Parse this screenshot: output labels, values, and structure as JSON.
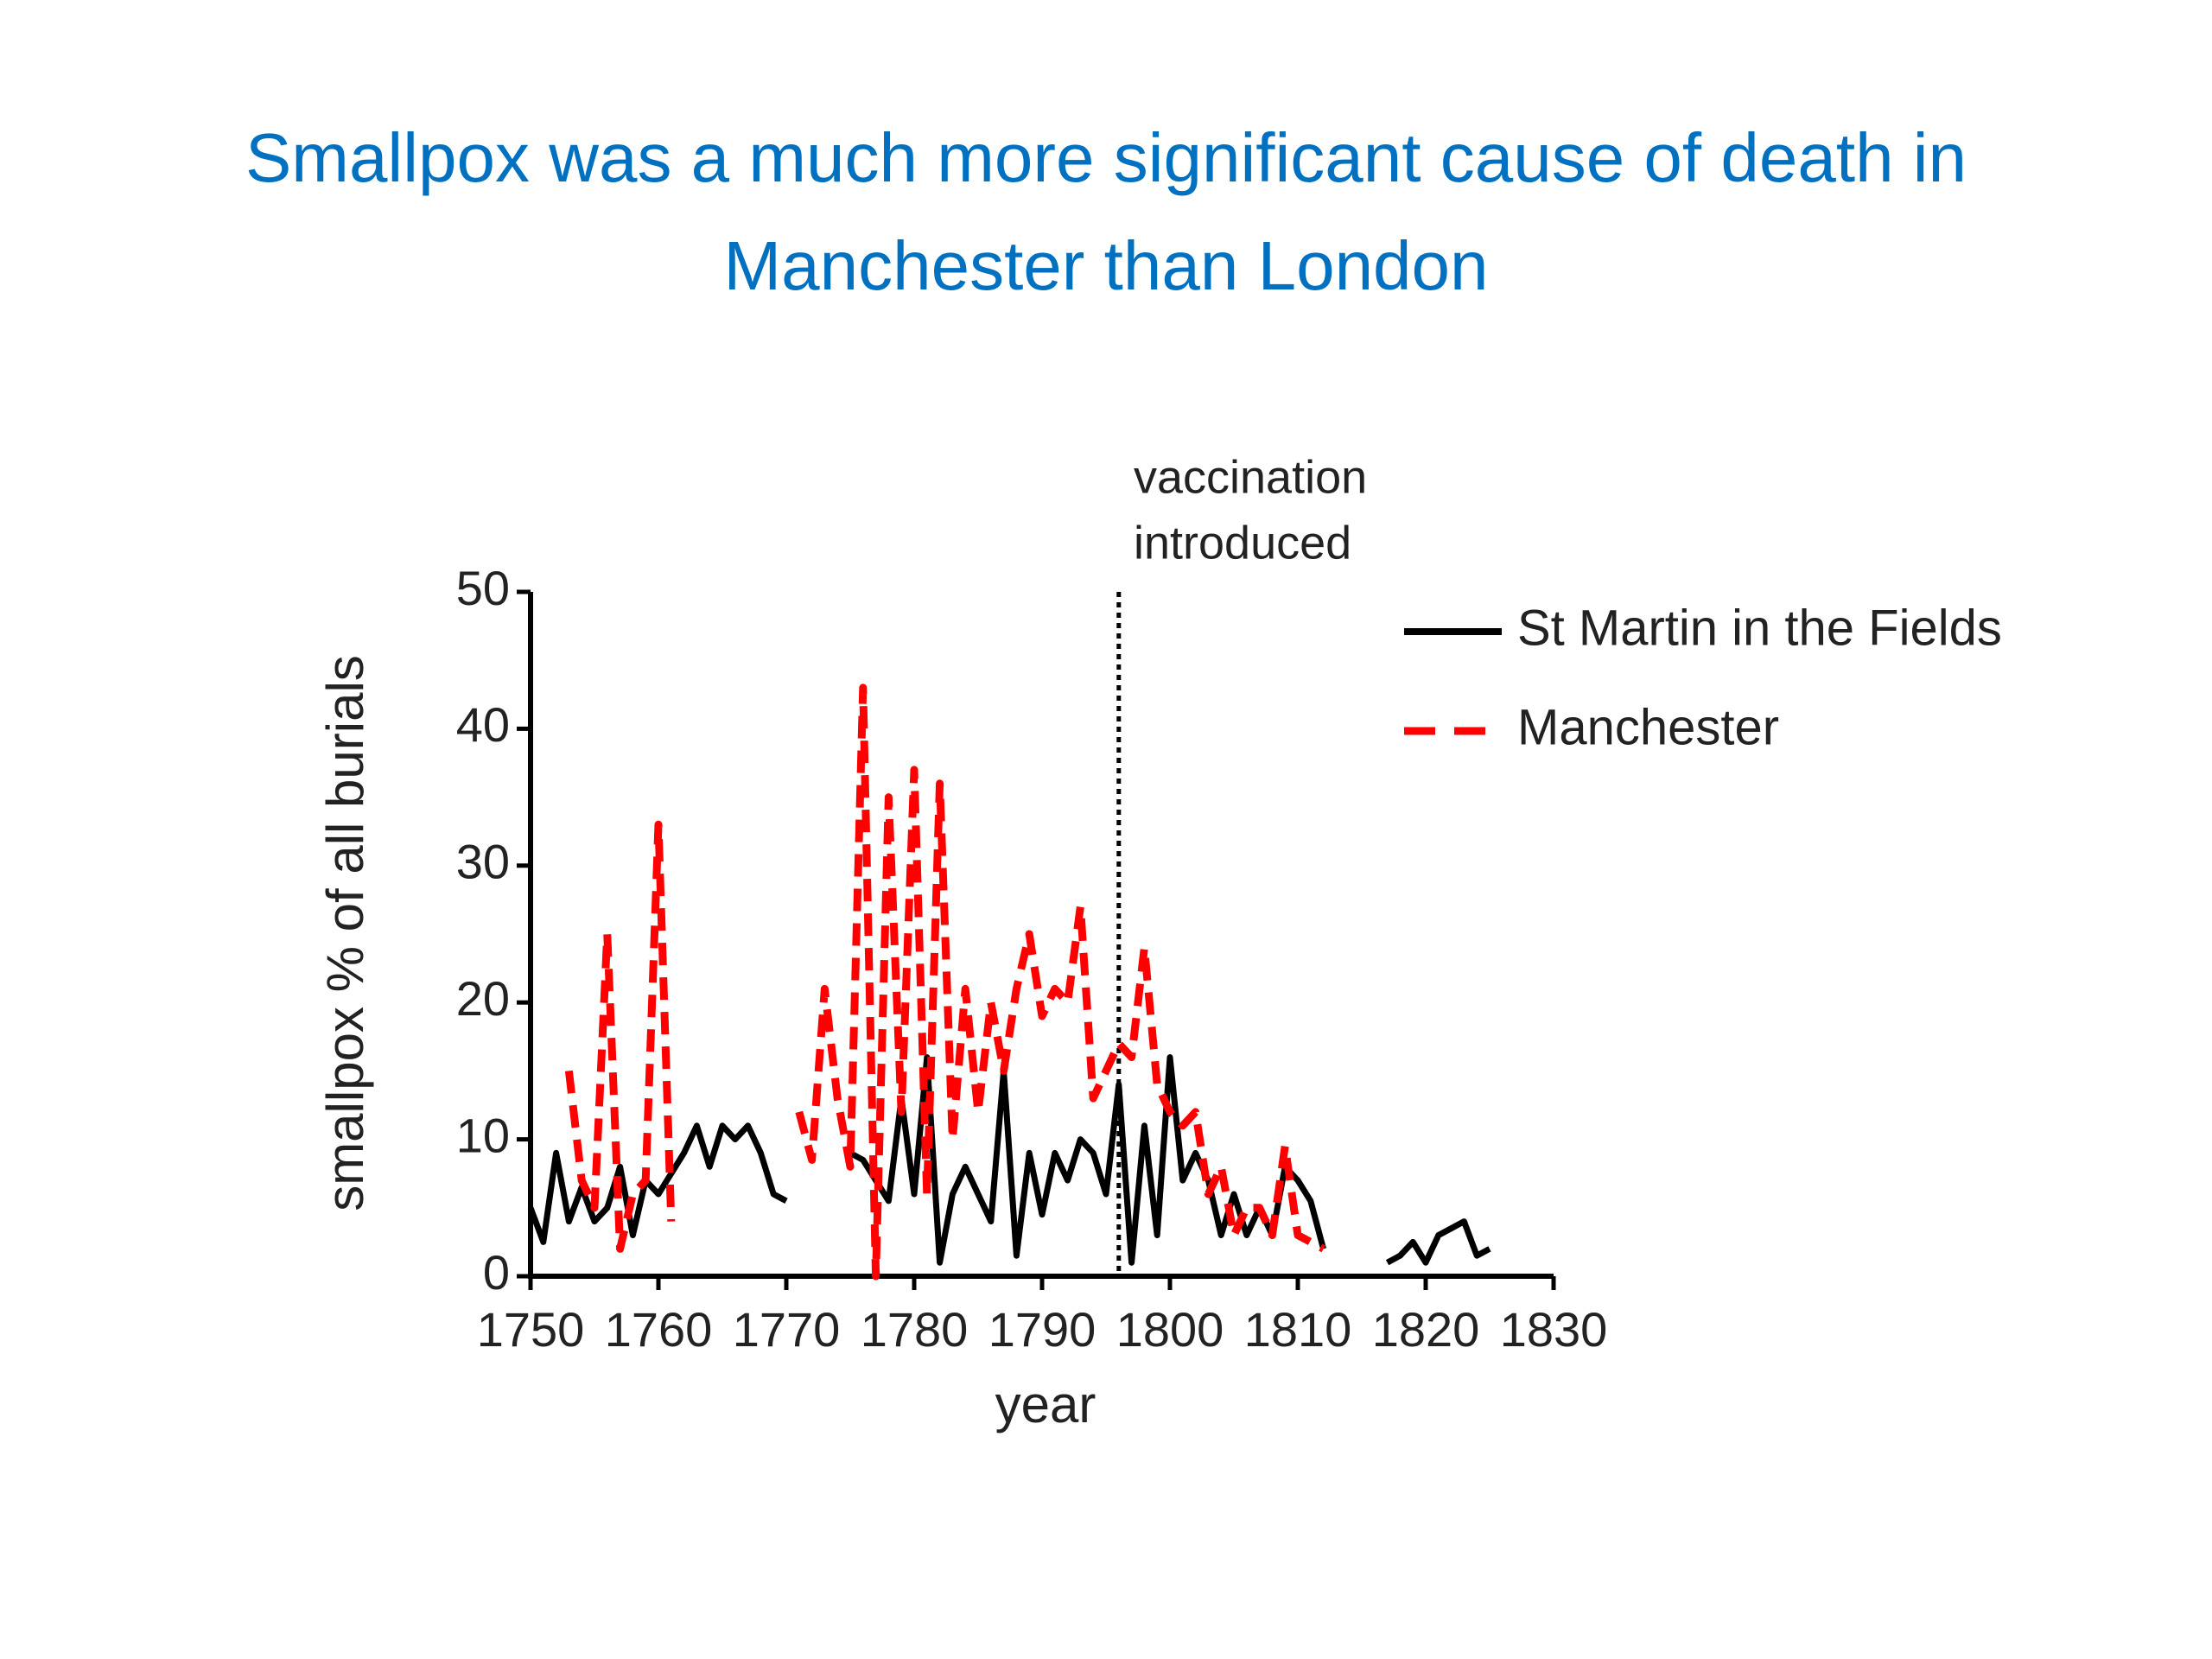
{
  "chart_data": {
    "type": "line",
    "title": "Smallpox was a much more significant cause of death in Manchester than London",
    "xlabel": "year",
    "ylabel": "smallpox % of all burials",
    "annotation": {
      "x": 1796,
      "lines": [
        "vaccination",
        "introduced"
      ]
    },
    "x": [
      1750,
      1751,
      1752,
      1753,
      1754,
      1755,
      1756,
      1757,
      1758,
      1759,
      1760,
      1761,
      1762,
      1763,
      1764,
      1765,
      1766,
      1767,
      1768,
      1769,
      1770,
      1771,
      1772,
      1773,
      1774,
      1775,
      1776,
      1777,
      1778,
      1779,
      1780,
      1781,
      1782,
      1783,
      1784,
      1785,
      1786,
      1787,
      1788,
      1789,
      1790,
      1791,
      1792,
      1793,
      1794,
      1795,
      1796,
      1797,
      1798,
      1799,
      1800,
      1801,
      1802,
      1803,
      1804,
      1805,
      1806,
      1807,
      1808,
      1809,
      1810,
      1811,
      1812,
      1813,
      1814,
      1815,
      1816,
      1817,
      1818,
      1819,
      1820,
      1821,
      1822,
      1823,
      1824,
      1825
    ],
    "series": [
      {
        "name": "St Martin in the Fields",
        "color": "#000000",
        "dashed": false,
        "values": [
          5,
          2.5,
          9,
          4,
          6.5,
          4,
          5,
          8,
          3,
          7,
          6,
          7.5,
          9,
          11,
          8,
          11,
          10,
          11,
          9,
          6,
          5.5,
          null,
          null,
          null,
          null,
          9,
          8.5,
          7,
          5.5,
          13,
          6,
          16,
          1,
          6,
          8,
          6,
          4,
          15,
          1.5,
          9,
          4.5,
          9,
          7,
          10,
          9,
          6,
          14,
          1,
          11,
          3,
          16,
          7,
          9,
          7,
          3,
          6,
          3,
          5,
          3,
          8,
          7,
          5.5,
          2,
          null,
          null,
          null,
          null,
          1,
          1.5,
          2.5,
          1,
          3,
          3.5,
          4,
          1.5,
          2
        ]
      },
      {
        "name": "Manchester",
        "color": "#ff0000",
        "dashed": true,
        "values": [
          null,
          null,
          null,
          15,
          7,
          5,
          25,
          2,
          6,
          7,
          33,
          4,
          null,
          null,
          null,
          null,
          null,
          null,
          null,
          null,
          null,
          12,
          8.5,
          21,
          13,
          8,
          43,
          0,
          35,
          12,
          37,
          6,
          36,
          10,
          21,
          12,
          20,
          15,
          21,
          25,
          19,
          21,
          20,
          27,
          13,
          15,
          17,
          16,
          24,
          14,
          12,
          11,
          12,
          6,
          8,
          3,
          5,
          5,
          3,
          9.5,
          3,
          2.5,
          2,
          null,
          null,
          null,
          null,
          null,
          null,
          null,
          null,
          null,
          null,
          null,
          null,
          null
        ]
      }
    ],
    "xlim": [
      1750,
      1830
    ],
    "xticks": [
      1750,
      1760,
      1770,
      1780,
      1790,
      1800,
      1810,
      1820,
      1830
    ],
    "ylim": [
      0,
      50
    ],
    "yticks": [
      0,
      10,
      20,
      30,
      40,
      50
    ],
    "grid": false,
    "legend": "upper right"
  }
}
